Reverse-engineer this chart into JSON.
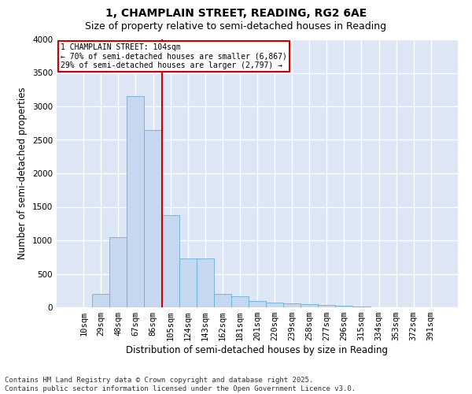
{
  "title1": "1, CHAMPLAIN STREET, READING, RG2 6AE",
  "title2": "Size of property relative to semi-detached houses in Reading",
  "xlabel": "Distribution of semi-detached houses by size in Reading",
  "ylabel": "Number of semi-detached properties",
  "bin_labels": [
    "10sqm",
    "29sqm",
    "48sqm",
    "67sqm",
    "86sqm",
    "105sqm",
    "124sqm",
    "143sqm",
    "162sqm",
    "181sqm",
    "201sqm",
    "220sqm",
    "239sqm",
    "258sqm",
    "277sqm",
    "296sqm",
    "315sqm",
    "334sqm",
    "353sqm",
    "372sqm",
    "391sqm"
  ],
  "bar_heights": [
    5,
    200,
    1050,
    3150,
    2650,
    1380,
    730,
    730,
    200,
    160,
    100,
    70,
    60,
    50,
    35,
    20,
    8,
    3,
    1,
    0,
    0
  ],
  "bar_color": "#c5d8ef",
  "bar_edge_color": "#6baed6",
  "vline_color": "#cc0000",
  "annotation_title": "1 CHAMPLAIN STREET: 104sqm",
  "annotation_line1": "← 70% of semi-detached houses are smaller (6,867)",
  "annotation_line2": "29% of semi-detached houses are larger (2,797) →",
  "annotation_box_color": "#ffffff",
  "annotation_box_edge": "#cc0000",
  "ylim": [
    0,
    4000
  ],
  "yticks": [
    0,
    500,
    1000,
    1500,
    2000,
    2500,
    3000,
    3500,
    4000
  ],
  "footer": "Contains HM Land Registry data © Crown copyright and database right 2025.\nContains public sector information licensed under the Open Government Licence v3.0.",
  "background_color": "#dce6f5",
  "grid_color": "#ffffff",
  "title1_fontsize": 10,
  "title2_fontsize": 9,
  "xlabel_fontsize": 8.5,
  "ylabel_fontsize": 8.5,
  "tick_fontsize": 7.5,
  "footer_fontsize": 6.5
}
